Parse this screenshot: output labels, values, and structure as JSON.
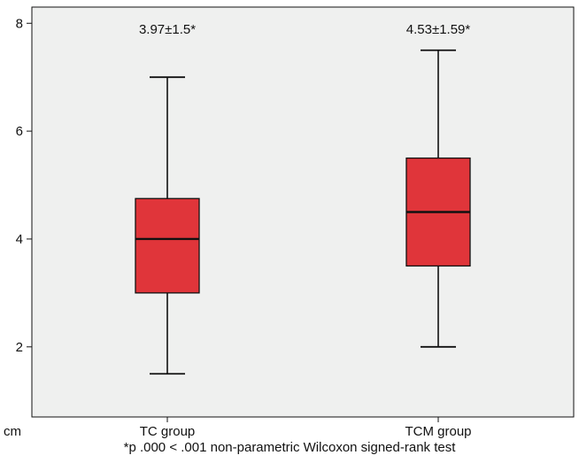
{
  "chart_data": {
    "type": "box",
    "categories": [
      "TC group",
      "TCM group"
    ],
    "boxes": [
      {
        "category": "TC group",
        "min": 1.5,
        "q1": 3.0,
        "median": 4.0,
        "q3": 4.75,
        "max": 7.0,
        "annotation": "3.97±1.5*"
      },
      {
        "category": "TCM group",
        "min": 2.0,
        "q1": 3.5,
        "median": 4.5,
        "q3": 5.5,
        "max": 7.5,
        "annotation": "4.53±1.59*"
      }
    ],
    "ylim": [
      0.7,
      8.3
    ],
    "yticks": [
      2,
      4,
      6,
      8
    ],
    "ylabel": "cm",
    "xlabel": "",
    "footnote": "*p .000 < .001 non-parametric Wilcoxon signed-rank test",
    "grid": false,
    "colors": {
      "box_fill": "#e0353a",
      "plot_background": "#eff0ef",
      "line": "#111111"
    }
  }
}
